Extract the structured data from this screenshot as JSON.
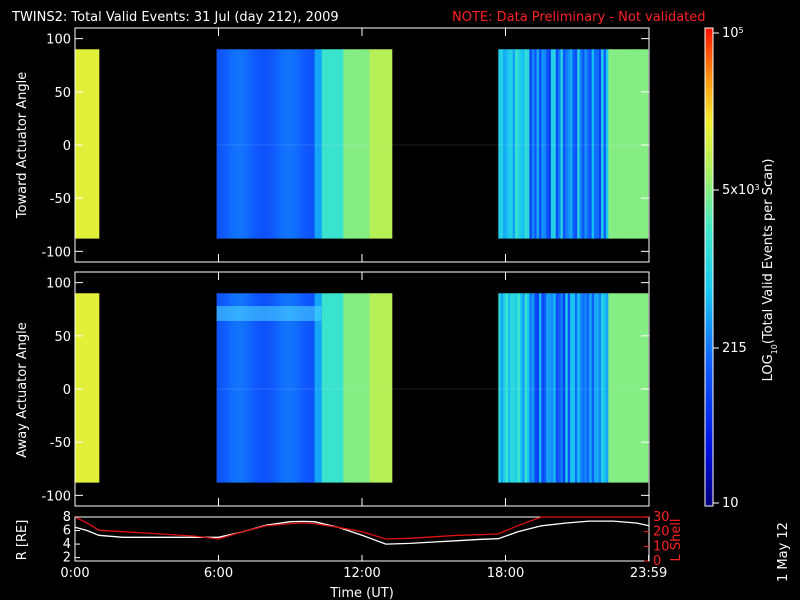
{
  "header": {
    "title": "TWINS2: Total Valid Events: 31 Jul (day 212), 2009",
    "note": "NOTE: Data Preliminary - Not validated"
  },
  "side_date": "1 May 12",
  "colors": {
    "background": "#000000",
    "axes": "#ffffff",
    "note": "#ff2020",
    "r_line": "#ffffff",
    "lshell_line": "#e01010"
  },
  "chart_data": [
    {
      "type": "heatmap",
      "name": "toward",
      "ylabel": "Toward Actuator Angle",
      "xlim": [
        0,
        24
      ],
      "ylim": [
        -110,
        110
      ],
      "yticks": [
        "100",
        "50",
        "0",
        "-50",
        "-100"
      ],
      "angle_range": [
        -88,
        90
      ],
      "coverage": [
        [
          0.0,
          1.0
        ],
        [
          5.92,
          13.25
        ],
        [
          17.7,
          23.95
        ]
      ]
    },
    {
      "type": "heatmap",
      "name": "away",
      "ylabel": "Away Actuator Angle",
      "xlim": [
        0,
        24
      ],
      "ylim": [
        -110,
        110
      ],
      "yticks": [
        "100",
        "50",
        "0",
        "-50",
        "-100"
      ],
      "angle_range": [
        -88,
        90
      ],
      "coverage": [
        [
          0.0,
          1.0
        ],
        [
          5.92,
          13.25
        ],
        [
          17.7,
          23.95
        ]
      ]
    },
    {
      "type": "line",
      "name": "orbit",
      "ylabel_left": "R [RE]",
      "ylabel_right": "L Shell",
      "xlabel": "Time (UT)",
      "xlim": [
        0,
        24
      ],
      "ylim_left": [
        1.5,
        8
      ],
      "ylim_right": [
        0,
        30
      ],
      "yticks_left": [
        "8",
        "6",
        "4",
        "2"
      ],
      "yticks_right": [
        "30",
        "20",
        "10",
        "0"
      ],
      "xticks": [
        "0:00",
        "6:00",
        "12:00",
        "18:00",
        "23:59"
      ],
      "x": [
        0,
        0.5,
        1,
        2,
        3,
        4,
        5,
        6,
        7,
        8,
        9,
        9.5,
        10,
        11,
        12,
        13,
        14,
        15,
        16,
        17,
        17.7,
        18.5,
        19.5,
        20.5,
        21.5,
        22.5,
        23.5,
        24
      ],
      "r": [
        6.5,
        6.0,
        5.3,
        5.0,
        5.0,
        5.0,
        5.0,
        5.0,
        5.8,
        6.8,
        7.3,
        7.35,
        7.3,
        6.5,
        5.3,
        4.0,
        4.1,
        4.3,
        4.5,
        4.7,
        4.8,
        5.8,
        6.7,
        7.1,
        7.4,
        7.4,
        7.1,
        6.7
      ],
      "lshell": [
        30,
        26,
        21,
        20,
        19,
        18,
        17,
        15,
        20,
        24,
        25.5,
        26,
        25.5,
        23,
        20,
        15,
        15.5,
        16.5,
        17.5,
        18,
        18.5,
        24,
        32,
        34,
        34,
        34,
        34,
        34
      ]
    }
  ],
  "colorbar": {
    "label": "LOG10(Total Valid Events per Scan)",
    "label_main": "LOG",
    "label_sub": "10",
    "label_rest": "(Total Valid Events per Scan)",
    "ticks": [
      {
        "base": "10",
        "exp": "5"
      },
      {
        "base": "5x10",
        "exp": "3"
      },
      {
        "base": "215",
        "exp": ""
      },
      {
        "base": "10",
        "exp": ""
      }
    ]
  }
}
